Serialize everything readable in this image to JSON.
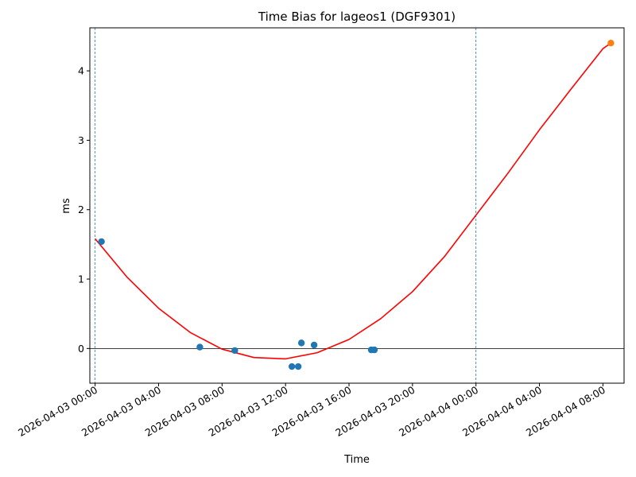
{
  "chart_data": {
    "type": "scatter",
    "title": "Time Bias for lageos1 (DGF9301)",
    "xlabel": "Time",
    "ylabel": "ms",
    "x_tick_labels": [
      "2026-04-03 00:00",
      "2026-04-03 04:00",
      "2026-04-03 08:00",
      "2026-04-03 12:00",
      "2026-04-03 16:00",
      "2026-04-03 20:00",
      "2026-04-04 00:00",
      "2026-04-04 04:00",
      "2026-04-04 08:00"
    ],
    "y_tick_labels": [
      "0",
      "1",
      "2",
      "3",
      "4"
    ],
    "xlim": [
      "2026-04-02 23:40",
      "2026-04-04 09:20"
    ],
    "ylim": [
      -0.5,
      4.62
    ],
    "grid": false,
    "legend": "none",
    "series": [
      {
        "kind": "scatter",
        "color": "#1f77b4",
        "points": [
          {
            "x": "2026-04-03 00:24",
            "y": 1.54
          },
          {
            "x": "2026-04-03 06:36",
            "y": 0.02
          },
          {
            "x": "2026-04-03 08:48",
            "y": -0.03
          },
          {
            "x": "2026-04-03 12:24",
            "y": -0.26
          },
          {
            "x": "2026-04-03 12:48",
            "y": -0.26
          },
          {
            "x": "2026-04-03 13:00",
            "y": 0.08
          },
          {
            "x": "2026-04-03 13:48",
            "y": 0.05
          },
          {
            "x": "2026-04-03 17:24",
            "y": -0.02
          },
          {
            "x": "2026-04-03 17:36",
            "y": -0.02
          }
        ]
      },
      {
        "kind": "scatter",
        "color": "#ff7f0e",
        "points": [
          {
            "x": "2026-04-04 08:30",
            "y": 4.4
          }
        ]
      },
      {
        "kind": "curve",
        "color": "#ff0000",
        "points": [
          {
            "x": "2026-04-03 00:00",
            "y": 1.58
          },
          {
            "x": "2026-04-03 02:00",
            "y": 1.03
          },
          {
            "x": "2026-04-03 04:00",
            "y": 0.58
          },
          {
            "x": "2026-04-03 06:00",
            "y": 0.23
          },
          {
            "x": "2026-04-03 08:00",
            "y": -0.01
          },
          {
            "x": "2026-04-03 10:00",
            "y": -0.13
          },
          {
            "x": "2026-04-03 12:00",
            "y": -0.15
          },
          {
            "x": "2026-04-03 14:00",
            "y": -0.06
          },
          {
            "x": "2026-04-03 16:00",
            "y": 0.13
          },
          {
            "x": "2026-04-03 18:00",
            "y": 0.43
          },
          {
            "x": "2026-04-03 20:00",
            "y": 0.82
          },
          {
            "x": "2026-04-03 22:00",
            "y": 1.32
          },
          {
            "x": "2026-04-04 00:00",
            "y": 1.92
          },
          {
            "x": "2026-04-04 02:00",
            "y": 2.52
          },
          {
            "x": "2026-04-04 04:00",
            "y": 3.15
          },
          {
            "x": "2026-04-04 06:00",
            "y": 3.74
          },
          {
            "x": "2026-04-04 08:00",
            "y": 4.32
          },
          {
            "x": "2026-04-04 08:30",
            "y": 4.4
          }
        ]
      }
    ],
    "reference_lines": [
      {
        "orientation": "vertical",
        "style": "dashed",
        "color": "#1f77b4",
        "x": "2026-04-03 00:00"
      },
      {
        "orientation": "vertical",
        "style": "dashed",
        "color": "#1f77b4",
        "x": "2026-04-04 00:00"
      },
      {
        "orientation": "horizontal",
        "style": "solid",
        "color": "#000000",
        "y": 0
      }
    ]
  }
}
